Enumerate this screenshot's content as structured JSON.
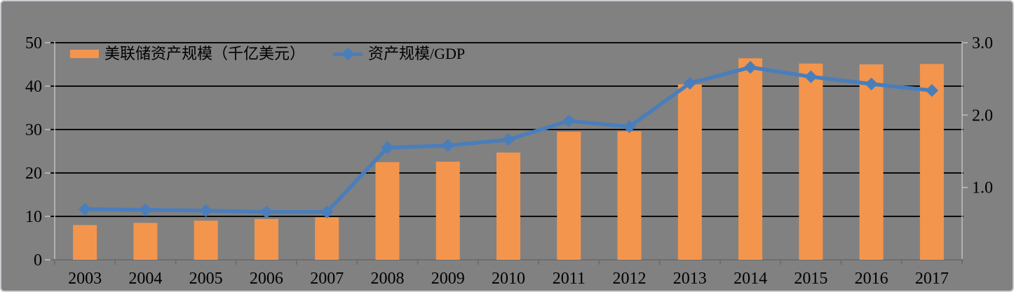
{
  "figure": {
    "background": "#818181",
    "border_color": "#c9ccd1",
    "grid_color": "#0a0a0a",
    "category_axis_color": "#6e6e6e",
    "spine_color": "#bfbfbf",
    "text_color": "#000000"
  },
  "chart_data": {
    "type": "combo-bar-line",
    "title": "",
    "categories": [
      "2003",
      "2004",
      "2005",
      "2006",
      "2007",
      "2008",
      "2009",
      "2010",
      "2011",
      "2012",
      "2013",
      "2014",
      "2015",
      "2016",
      "2017"
    ],
    "series": [
      {
        "name": "美联储资产规模（千亿美元）",
        "type": "bar",
        "y_axis": "left",
        "color": "#F4954D",
        "values": [
          8.0,
          8.5,
          9.0,
          9.4,
          9.8,
          22.5,
          22.6,
          24.7,
          29.5,
          29.6,
          40.4,
          46.4,
          45.2,
          45.0,
          45.1
        ]
      },
      {
        "name": "资产规模/GDP",
        "type": "line",
        "y_axis": "right",
        "color": "#4A7EBB",
        "marker": "diamond",
        "values": [
          0.7,
          0.69,
          0.68,
          0.66,
          0.66,
          1.55,
          1.58,
          1.66,
          1.92,
          1.84,
          2.44,
          2.66,
          2.53,
          2.43,
          2.34
        ]
      }
    ],
    "left_axis": {
      "min": 0,
      "max": 50,
      "tick_values": [
        0,
        10,
        20,
        30,
        40,
        50
      ],
      "tick_labels": [
        "0",
        "10",
        "20",
        "30",
        "40",
        "50"
      ]
    },
    "right_axis": {
      "min": 0,
      "max": 3.0,
      "tick_values": [
        1,
        2,
        3
      ],
      "tick_labels": [
        "1.0",
        "2.0",
        "3.0"
      ]
    },
    "grid": "horizontal-black",
    "legend_position": "top-left-inside"
  }
}
